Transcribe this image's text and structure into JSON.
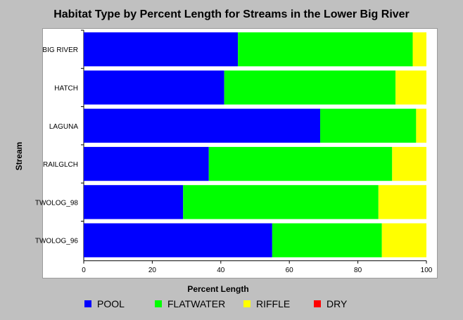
{
  "chart_data": {
    "type": "bar",
    "orientation": "horizontal",
    "stacked": true,
    "title": "Habitat Type by Percent Length for Streams in the Lower Big River",
    "xlabel": "Percent Length",
    "ylabel": "Stream",
    "xlim": [
      0,
      100
    ],
    "xticks": [
      "0",
      "20",
      "40",
      "60",
      "80",
      "100"
    ],
    "categories": [
      "BIG RIVER",
      "HATCH",
      "LAGUNA",
      "RAILGLCH",
      "TWOLOG_98",
      "TWOLOG_96"
    ],
    "series": [
      {
        "name": "POOL",
        "color": "#0000ff",
        "values": [
          45,
          41,
          69,
          36.5,
          29,
          55
        ]
      },
      {
        "name": "FLATWATER",
        "color": "#00ff00",
        "values": [
          51,
          50,
          28,
          53.5,
          57,
          32
        ]
      },
      {
        "name": "RIFFLE",
        "color": "#ffff00",
        "values": [
          4,
          9,
          3,
          10,
          14,
          13
        ]
      },
      {
        "name": "DRY",
        "color": "#ff0000",
        "values": [
          0,
          0,
          0,
          0,
          0,
          0
        ]
      }
    ],
    "grid": false,
    "legend_position": "bottom"
  }
}
